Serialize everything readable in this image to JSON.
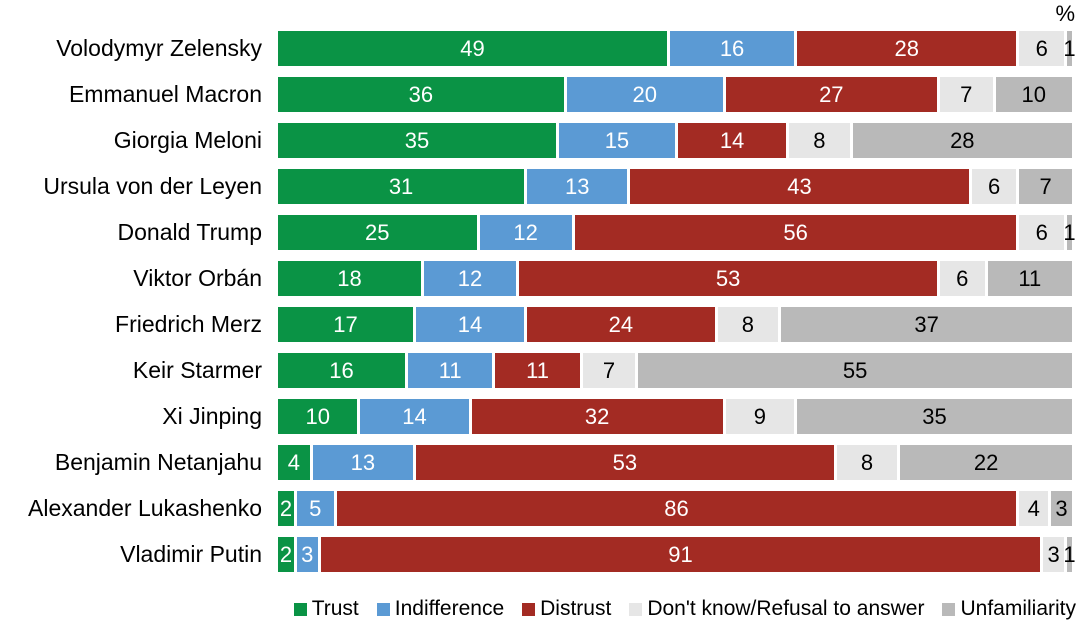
{
  "header": {
    "unit_label": "%"
  },
  "chart_data": {
    "type": "bar",
    "orientation": "horizontal",
    "stacked": true,
    "unit_label": "%",
    "xlim": [
      0,
      100
    ],
    "grid": false,
    "legend_position": "bottom-right",
    "categories": [
      "Volodymyr Zelensky",
      "Emmanuel Macron",
      "Giorgia Meloni",
      "Ursula von der Leyen",
      "Donald Trump",
      "Viktor Orbán",
      "Friedrich Merz",
      "Keir Starmer",
      "Xi Jinping",
      "Benjamin Netanjahu",
      "Alexander Lukashenko",
      "Vladimir Putin"
    ],
    "series": [
      {
        "name": "Trust",
        "color": "#0a9345",
        "text_color": "#ffffff",
        "values": [
          49,
          36,
          35,
          31,
          25,
          18,
          17,
          16,
          10,
          4,
          2,
          2
        ]
      },
      {
        "name": "Indifference",
        "color": "#5b9ad4",
        "text_color": "#ffffff",
        "values": [
          16,
          20,
          15,
          13,
          12,
          12,
          14,
          11,
          14,
          13,
          5,
          3
        ]
      },
      {
        "name": "Distrust",
        "color": "#a32b23",
        "text_color": "#ffffff",
        "values": [
          28,
          27,
          14,
          43,
          56,
          53,
          24,
          11,
          32,
          53,
          86,
          91
        ]
      },
      {
        "name": "Don't know/Refusal to answer",
        "color": "#e6e6e6",
        "text_color": "#000000",
        "values": [
          6,
          7,
          8,
          6,
          6,
          6,
          8,
          7,
          9,
          8,
          4,
          3
        ]
      },
      {
        "name": "Unfamiliarity",
        "color": "#b9b9b9",
        "text_color": "#000000",
        "values": [
          1,
          10,
          28,
          7,
          1,
          11,
          37,
          55,
          35,
          22,
          3,
          1
        ]
      }
    ]
  }
}
